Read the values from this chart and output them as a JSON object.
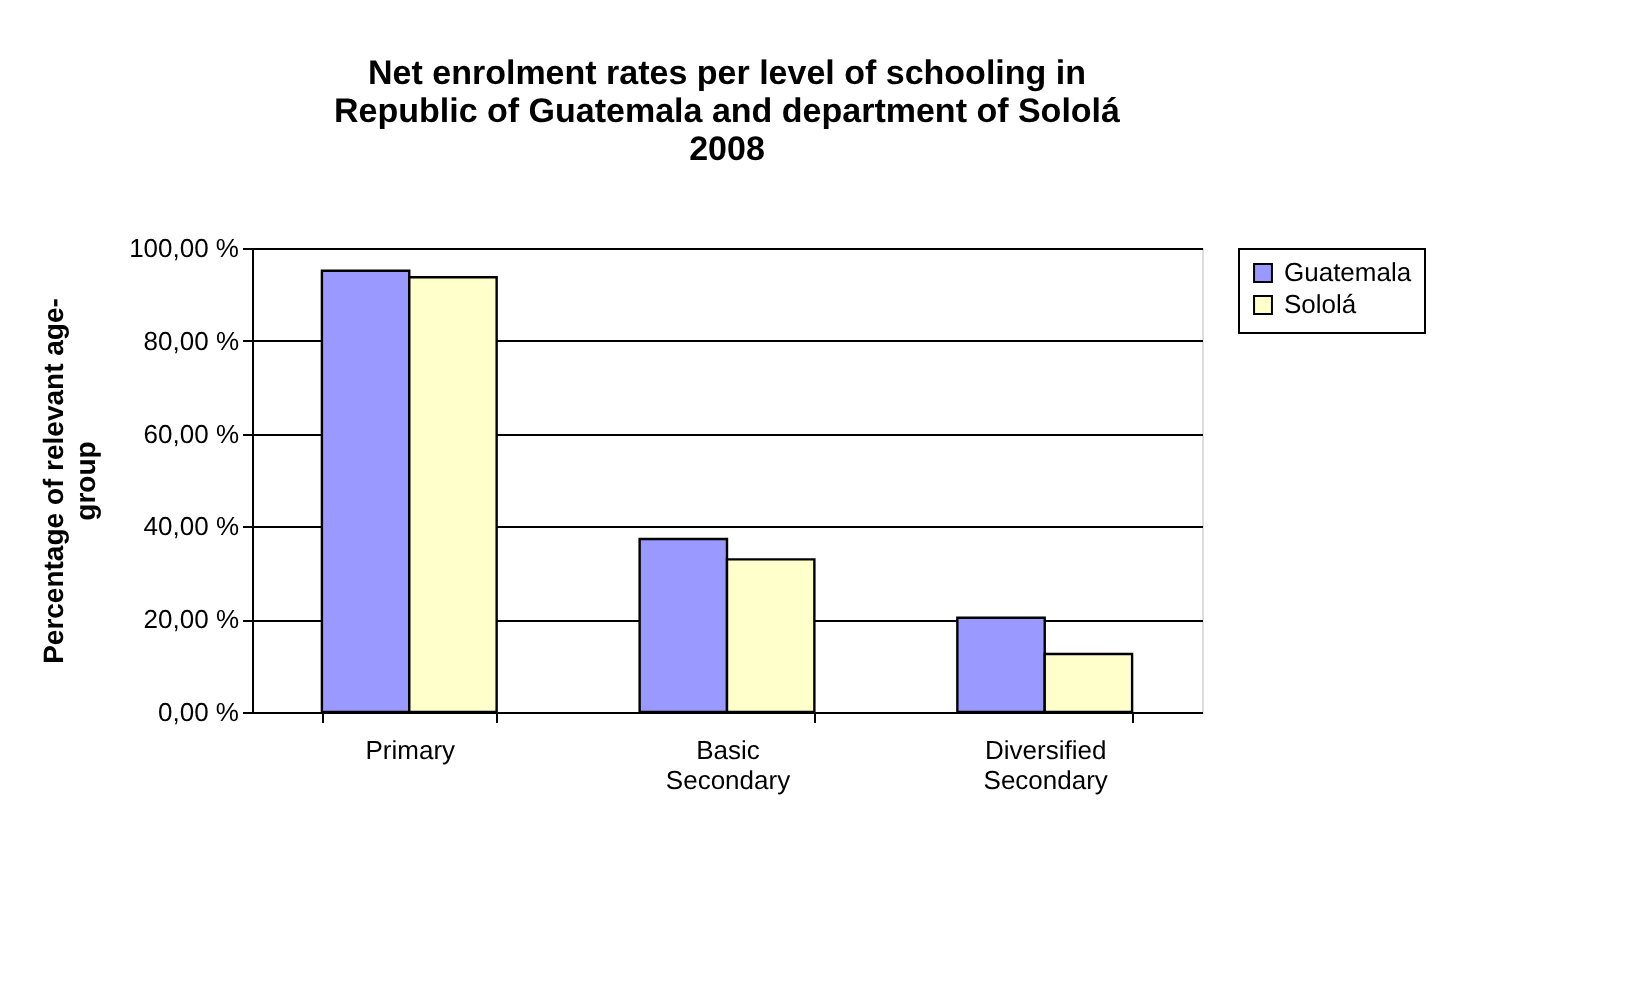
{
  "chart_data": {
    "type": "bar",
    "title": "Net enrolment rates per level of schooling in\nRepublic of Guatemala and department of Sololá\n2008",
    "ylabel": "Percentage of relevant age-\ngroup",
    "categories": [
      "Primary",
      "Basic Secondary",
      "Diversified Secondary"
    ],
    "series": [
      {
        "name": "Guatemala",
        "color": "#9999ff",
        "values": [
          95.1,
          37.3,
          20.3
        ]
      },
      {
        "name": "Sololá",
        "color": "#ffffcc",
        "values": [
          93.7,
          32.9,
          12.5
        ]
      }
    ],
    "ylim": [
      0,
      100
    ],
    "yticks": [
      {
        "value": 0,
        "label": "0,00 %"
      },
      {
        "value": 20,
        "label": "20,00 %"
      },
      {
        "value": 40,
        "label": "40,00 %"
      },
      {
        "value": 60,
        "label": "60,00 %"
      },
      {
        "value": 80,
        "label": "80,00 %"
      },
      {
        "value": 100,
        "label": "100,00 %"
      }
    ],
    "grid": "y",
    "legend": "right"
  }
}
